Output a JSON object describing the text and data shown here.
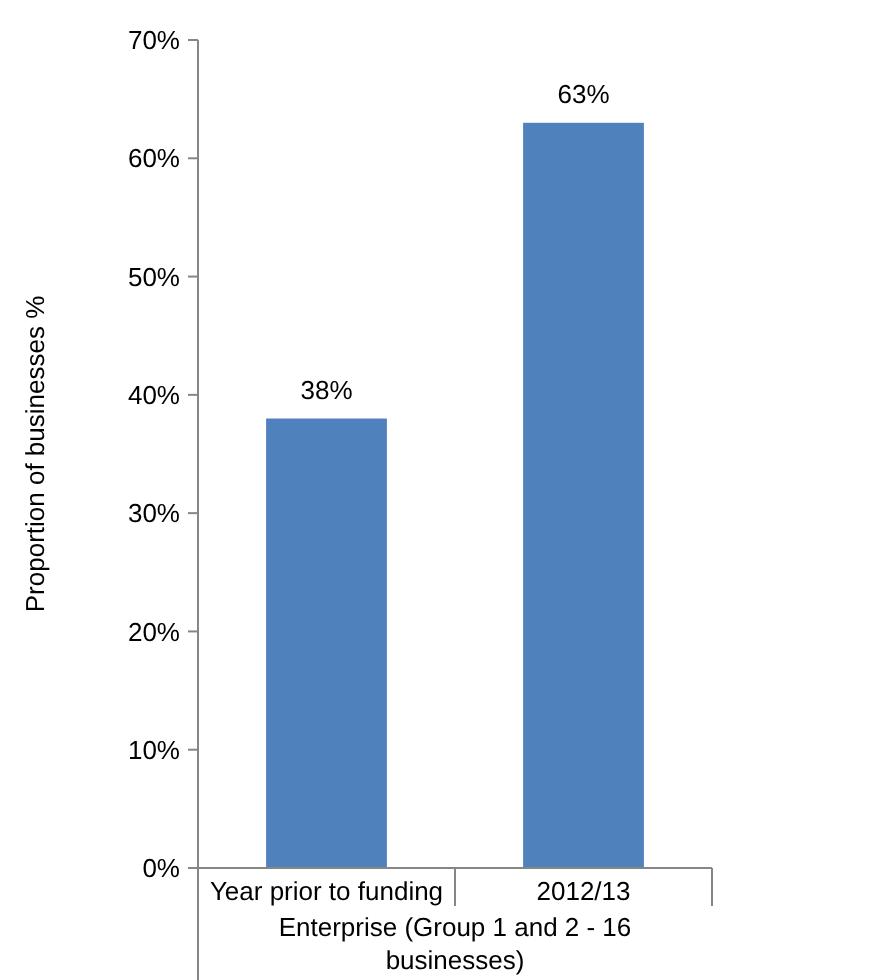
{
  "chart_data": {
    "type": "bar",
    "ylabel": "Proportion of businesses %",
    "xlabel": "Enterprise (Group 1 and 2 - 16 businesses)",
    "categories": [
      "Year prior to funding",
      "2012/13"
    ],
    "values": [
      38,
      63
    ],
    "color": "#4f81bd",
    "value_labels": [
      "38%",
      "63%"
    ],
    "ylim": [
      0,
      70
    ],
    "yticks": [
      {
        "value": 0,
        "label": "0%"
      },
      {
        "value": 10,
        "label": "10%"
      },
      {
        "value": 20,
        "label": "20%"
      },
      {
        "value": 30,
        "label": "30%"
      },
      {
        "value": 40,
        "label": "40%"
      },
      {
        "value": 50,
        "label": "50%"
      },
      {
        "value": 60,
        "label": "60%"
      },
      {
        "value": 70,
        "label": "70%"
      }
    ],
    "grid": false
  }
}
